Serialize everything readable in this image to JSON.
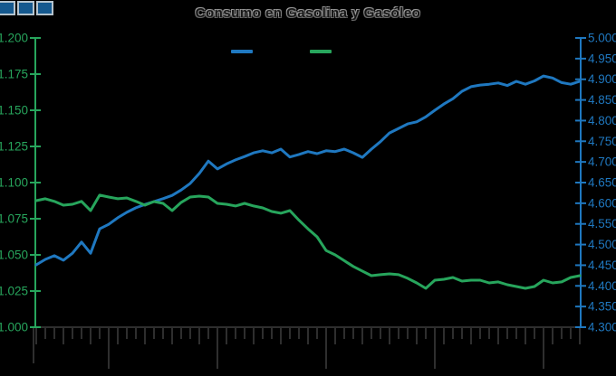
{
  "header": {
    "title": "Consumo en Gasolina y Gasóleo"
  },
  "logo": {
    "square_count": 3,
    "fill": "#15598f",
    "border": "#b5c3cd"
  },
  "chart_data": {
    "type": "line",
    "title": "Consumo en Gasolina y Gasóleo",
    "background": "#000000",
    "legend_position": "top-center",
    "legend": [
      {
        "id": "blue-line-swatch",
        "label": "",
        "color": "#1f78c0"
      },
      {
        "id": "green-line-swatch",
        "label": "",
        "color": "#27a55c"
      }
    ],
    "left_axis": {
      "min": 1.0,
      "max": 1.2,
      "step": 0.025,
      "color": "#27a55c",
      "labels": [
        "1.000",
        "1.025",
        "1.050",
        "1.075",
        "1.100",
        "1.125",
        "1.150",
        "1.175",
        "1.200"
      ]
    },
    "right_axis": {
      "min": 4.3,
      "max": 5.0,
      "step": 0.05,
      "color": "#1f78c0",
      "labels": [
        "4.300",
        "4.350",
        "4.400",
        "4.450",
        "4.500",
        "4.550",
        "4.600",
        "4.650",
        "4.700",
        "4.750",
        "4.800",
        "4.850",
        "4.900",
        "4.950",
        "5.000"
      ]
    },
    "x_axis": {
      "labels": [],
      "color": "#2e2e2e",
      "minor_tick_every": 1,
      "medium_tick_every": 3,
      "year_tick_indices": [
        8,
        20,
        32,
        44,
        56
      ]
    },
    "series": [
      {
        "id": "blue",
        "axis": "right",
        "color": "#1f78c0",
        "values": [
          4.451,
          4.464,
          4.473,
          4.462,
          4.479,
          4.506,
          4.479,
          4.538,
          4.549,
          4.565,
          4.578,
          4.589,
          4.597,
          4.604,
          4.611,
          4.619,
          4.632,
          4.648,
          4.672,
          4.702,
          4.683,
          4.695,
          4.705,
          4.713,
          4.722,
          4.727,
          4.722,
          4.731,
          4.712,
          4.718,
          4.725,
          4.72,
          4.727,
          4.725,
          4.731,
          4.722,
          4.711,
          4.731,
          4.749,
          4.77,
          4.781,
          4.792,
          4.797,
          4.809,
          4.825,
          4.84,
          4.853,
          4.871,
          4.882,
          4.886,
          4.888,
          4.891,
          4.885,
          4.895,
          4.888,
          4.896,
          4.908,
          4.903,
          4.892,
          4.888,
          4.895
        ]
      },
      {
        "id": "green",
        "axis": "left",
        "color": "#27a55c",
        "values": [
          1.0875,
          1.0888,
          1.087,
          1.0844,
          1.085,
          1.087,
          1.0806,
          1.0913,
          1.09,
          1.0888,
          1.0894,
          1.087,
          1.0844,
          1.0869,
          1.0856,
          1.0806,
          1.0863,
          1.09,
          1.0906,
          1.09,
          1.0856,
          1.085,
          1.0838,
          1.0856,
          1.0838,
          1.0825,
          1.08,
          1.0788,
          1.0806,
          1.074,
          1.068,
          1.0625,
          1.053,
          1.05,
          1.046,
          1.042,
          1.0388,
          1.0356,
          1.0363,
          1.0369,
          1.0363,
          1.0338,
          1.0306,
          1.0269,
          1.0325,
          1.0331,
          1.0344,
          1.0319,
          1.0325,
          1.0325,
          1.0306,
          1.0313,
          1.0294,
          1.0281,
          1.0269,
          1.0281,
          1.0325,
          1.0306,
          1.0313,
          1.0344,
          1.0356
        ]
      }
    ]
  }
}
